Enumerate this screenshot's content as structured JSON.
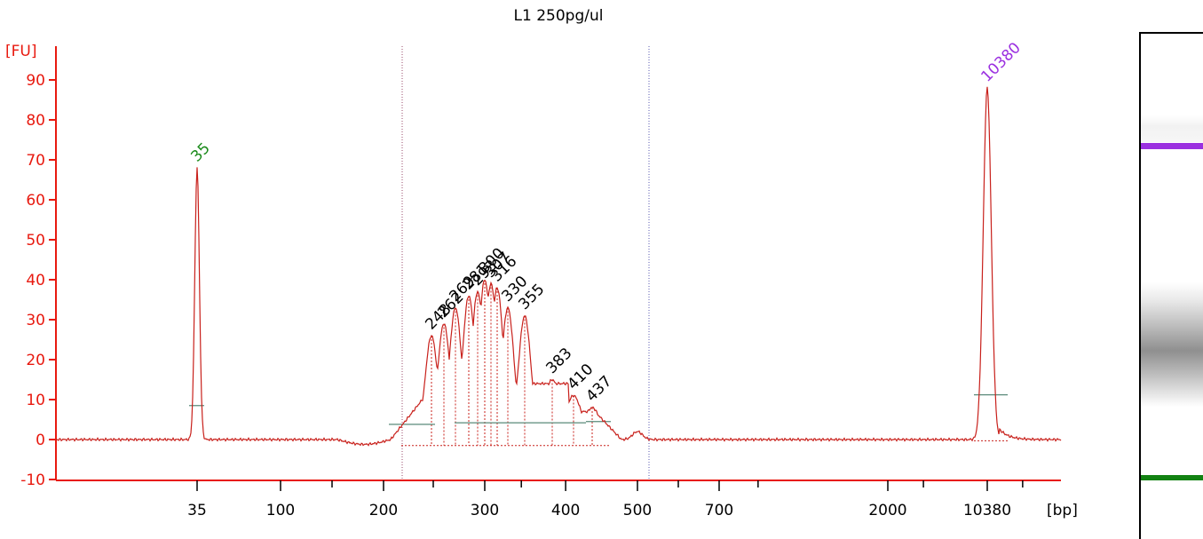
{
  "chart_data": {
    "type": "line",
    "title": "L1 250pg/ul",
    "ylabel": "[FU]",
    "xlabel": "[bp]",
    "ylim": [
      -10,
      95
    ],
    "y_ticks": [
      -10,
      0,
      10,
      20,
      30,
      40,
      50,
      60,
      70,
      80,
      90
    ],
    "x_ticks": [
      "35",
      "100",
      "200",
      "300",
      "400",
      "500",
      "700",
      "2000",
      "10380"
    ],
    "grid": false,
    "series": [
      {
        "x": [
          35,
          220,
          248,
          262,
          269,
          281,
          293,
          300,
          307,
          316,
          330,
          355,
          383,
          410,
          437,
          500,
          10380
        ],
        "values": [
          68,
          0,
          26,
          29,
          33,
          36,
          37,
          40,
          39,
          38,
          33,
          31,
          15,
          11,
          8,
          1,
          88
        ]
      }
    ],
    "peaks": [
      {
        "label": "35",
        "size": 35,
        "height": 68,
        "color": "#1a8a1a"
      },
      {
        "label": "248",
        "size": 248,
        "height": 26,
        "color": "#000000"
      },
      {
        "label": "262",
        "size": 262,
        "height": 29,
        "color": "#000000"
      },
      {
        "label": "269",
        "size": 269,
        "height": 33,
        "color": "#000000"
      },
      {
        "label": "281",
        "size": 281,
        "height": 36,
        "color": "#000000"
      },
      {
        "label": "293",
        "size": 293,
        "height": 37,
        "color": "#000000"
      },
      {
        "label": "300",
        "size": 300,
        "height": 40,
        "color": "#000000"
      },
      {
        "label": "307",
        "size": 307,
        "height": 39,
        "color": "#000000"
      },
      {
        "label": "316",
        "size": 316,
        "height": 38,
        "color": "#000000"
      },
      {
        "label": "330",
        "size": 330,
        "height": 33,
        "color": "#000000"
      },
      {
        "label": "355",
        "size": 355,
        "height": 31,
        "color": "#000000"
      },
      {
        "label": "383",
        "size": 383,
        "height": 15,
        "color": "#000000"
      },
      {
        "label": "410",
        "size": 410,
        "height": 11,
        "color": "#000000"
      },
      {
        "label": "437",
        "size": 437,
        "height": 8,
        "color": "#000000"
      },
      {
        "label": "10380",
        "size": 10380,
        "height": 88,
        "color": "#9b30e0"
      }
    ],
    "colors": {
      "axis": "#e8190f",
      "trace": "#c8201b",
      "lower_marker": "#1a8a1a",
      "upper_marker": "#9b30e0",
      "baseline": "#5a8a7a"
    },
    "gel": {
      "upper_marker_color": "#9b30e0",
      "lower_marker_color": "#128212"
    }
  }
}
